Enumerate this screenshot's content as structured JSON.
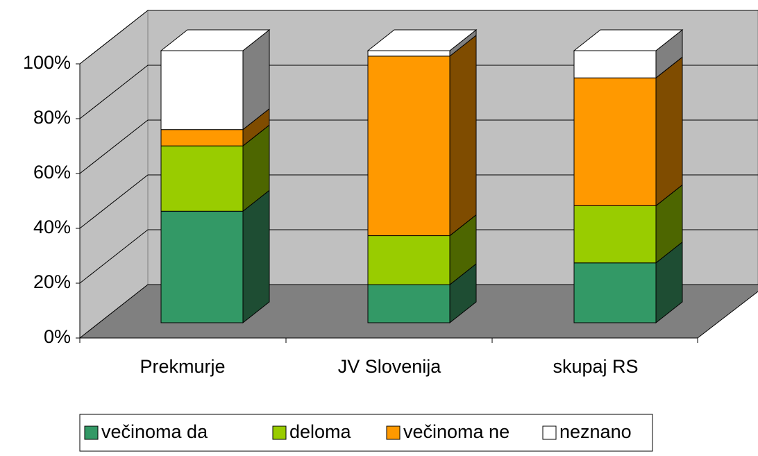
{
  "chart_data": {
    "type": "bar",
    "stacked": true,
    "three_d": true,
    "categories": [
      "Prekmurje",
      "JV Slovenija",
      "skupaj RS"
    ],
    "series": [
      {
        "name": "večinoma da",
        "color": "#339966",
        "side": "#1e4d33",
        "values": [
          41,
          14,
          22
        ]
      },
      {
        "name": "deloma",
        "color": "#99cc00",
        "side": "#4d6600",
        "values": [
          24,
          18,
          21
        ]
      },
      {
        "name": "večinoma ne",
        "color": "#ff9900",
        "side": "#7f4c00",
        "values": [
          6,
          66,
          47
        ]
      },
      {
        "name": "neznano",
        "color": "#ffffff",
        "side": "#808080",
        "values": [
          29,
          2,
          10
        ]
      }
    ],
    "ylim": [
      0,
      100
    ],
    "yticks": [
      {
        "value": 0,
        "label": "0%"
      },
      {
        "value": 20,
        "label": "20%"
      },
      {
        "value": 40,
        "label": "40%"
      },
      {
        "value": 60,
        "label": "60%"
      },
      {
        "value": 80,
        "label": "80%"
      },
      {
        "value": 100,
        "label": "100%"
      }
    ],
    "grid": true,
    "legend": "bottom"
  }
}
